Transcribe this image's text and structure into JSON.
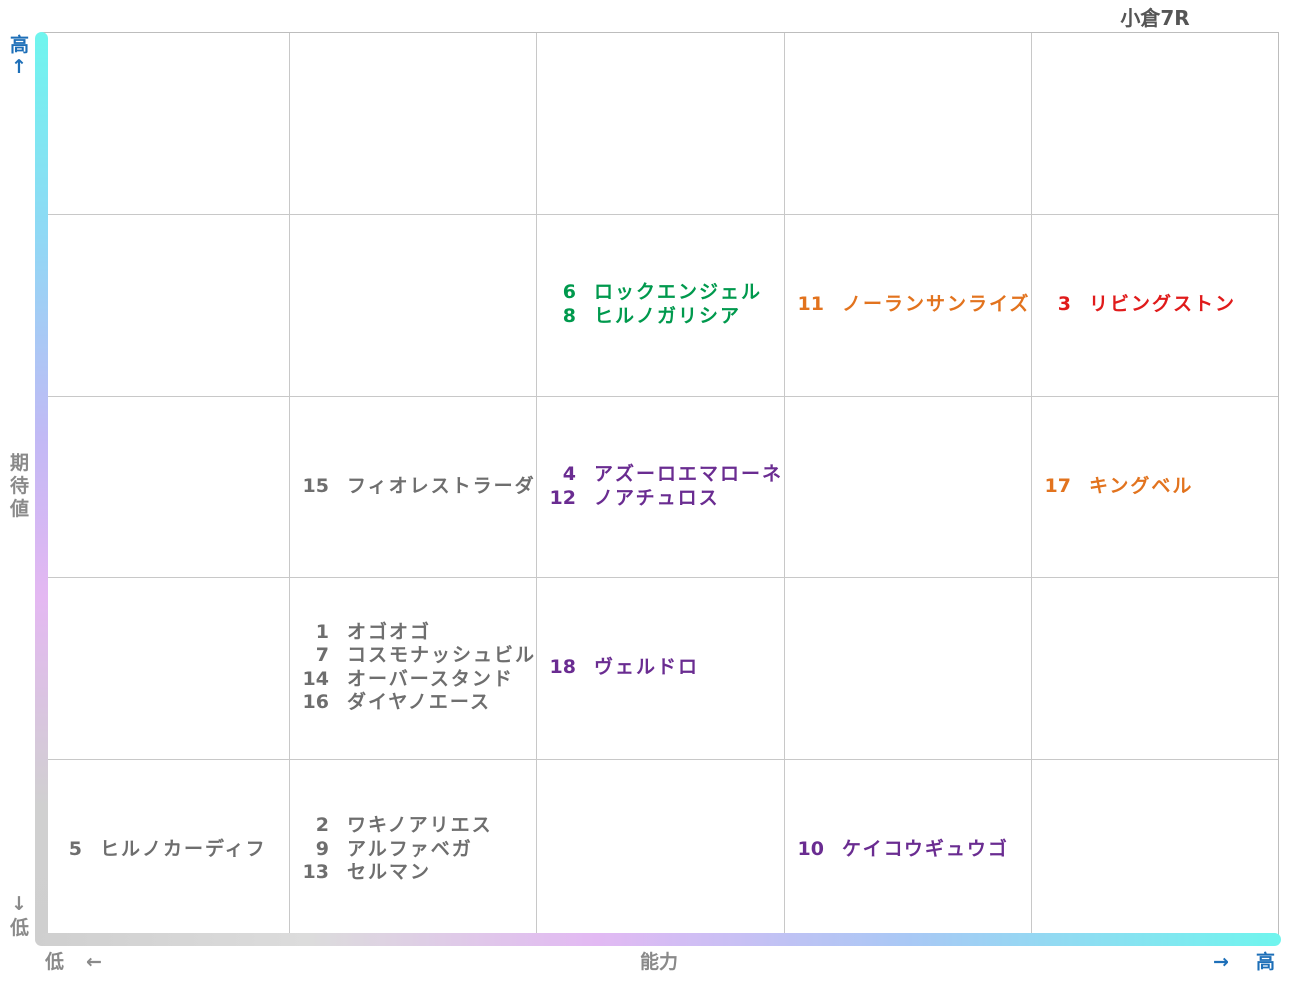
{
  "title": "小倉7R",
  "y_axis": {
    "high": "高",
    "label": "期待値",
    "low": "低",
    "up_arrow": "↑",
    "down_arrow": "↓"
  },
  "x_axis": {
    "low": "低",
    "label": "能力",
    "high": "高",
    "left_arrow": "←",
    "right_arrow": "→"
  },
  "colors": {
    "gray": "#6e6e6e",
    "purple": "#6a2c91",
    "green": "#00994d",
    "orange": "#e2731e",
    "red": "#e01b1b"
  },
  "cells": [
    {
      "col": 3,
      "row": 4,
      "horses": [
        {
          "num": "6",
          "name": "ロックエンジェル",
          "color": "green"
        },
        {
          "num": "8",
          "name": "ヒルノガリシア",
          "color": "green"
        }
      ]
    },
    {
      "col": 4,
      "row": 4,
      "horses": [
        {
          "num": "11",
          "name": "ノーランサンライズ",
          "color": "orange"
        }
      ]
    },
    {
      "col": 5,
      "row": 4,
      "horses": [
        {
          "num": "3",
          "name": "リビングストン",
          "color": "red"
        }
      ]
    },
    {
      "col": 2,
      "row": 3,
      "horses": [
        {
          "num": "15",
          "name": "フィオレストラーダ",
          "color": "gray"
        }
      ]
    },
    {
      "col": 3,
      "row": 3,
      "horses": [
        {
          "num": "4",
          "name": "アズーロエマローネ",
          "color": "purple"
        },
        {
          "num": "12",
          "name": "ノアチュロス",
          "color": "purple"
        }
      ]
    },
    {
      "col": 5,
      "row": 3,
      "horses": [
        {
          "num": "17",
          "name": "キングベル",
          "color": "orange"
        }
      ]
    },
    {
      "col": 2,
      "row": 2,
      "horses": [
        {
          "num": "1",
          "name": "オゴオゴ",
          "color": "gray"
        },
        {
          "num": "7",
          "name": "コスモナッシュビル",
          "color": "gray"
        },
        {
          "num": "14",
          "name": "オーバースタンド",
          "color": "gray"
        },
        {
          "num": "16",
          "name": "ダイヤノエース",
          "color": "gray"
        }
      ]
    },
    {
      "col": 3,
      "row": 2,
      "horses": [
        {
          "num": "18",
          "name": "ヴェルドロ",
          "color": "purple"
        }
      ]
    },
    {
      "col": 1,
      "row": 1,
      "horses": [
        {
          "num": "5",
          "name": "ヒルノカーディフ",
          "color": "gray"
        }
      ]
    },
    {
      "col": 2,
      "row": 1,
      "horses": [
        {
          "num": "2",
          "name": "ワキノアリエス",
          "color": "gray"
        },
        {
          "num": "9",
          "name": "アルファベガ",
          "color": "gray"
        },
        {
          "num": "13",
          "name": "セルマン",
          "color": "gray"
        }
      ]
    },
    {
      "col": 4,
      "row": 1,
      "horses": [
        {
          "num": "10",
          "name": "ケイコウギュウゴ",
          "color": "purple"
        }
      ]
    }
  ]
}
